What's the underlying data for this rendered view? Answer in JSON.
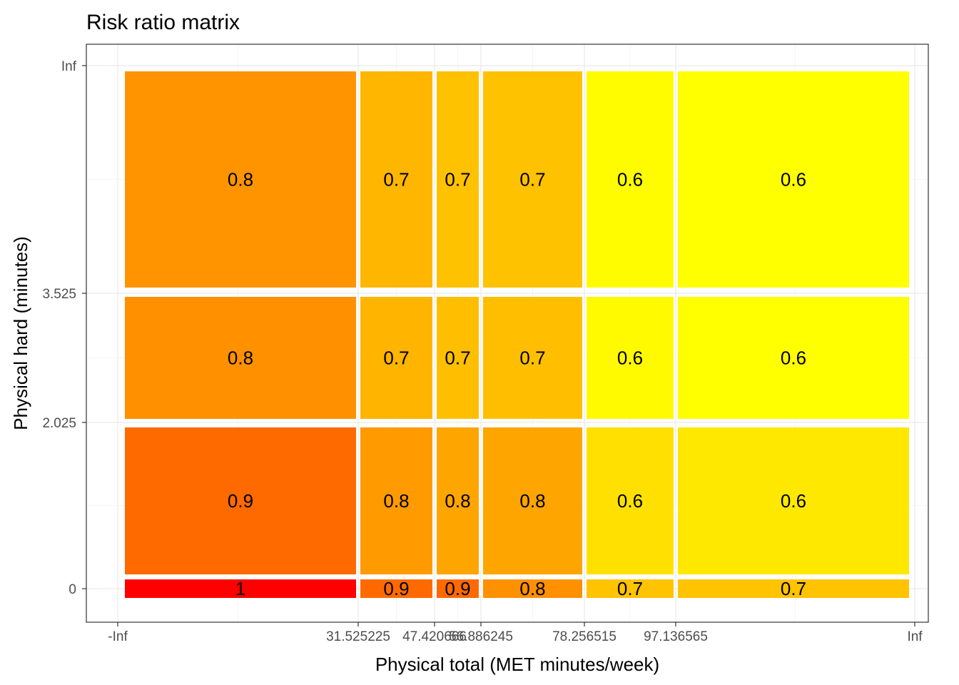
{
  "chart_data": {
    "type": "heatmap",
    "title": "Risk ratio matrix",
    "xlabel": "Physical total (MET minutes/week)",
    "ylabel": "Physical hard (minutes)",
    "x_ticks": [
      "-Inf",
      "31.525225",
      "47.420666",
      "56.886245",
      "78.256515",
      "97.136565",
      "Inf"
    ],
    "y_ticks": [
      "0",
      "2.025",
      "3.525",
      "Inf"
    ],
    "grid": true,
    "legend": "none",
    "cells": [
      {
        "x_bin": 0,
        "y_bin": 0,
        "value": 1,
        "label": "1",
        "color": "#FF0000"
      },
      {
        "x_bin": 1,
        "y_bin": 0,
        "value": 0.9,
        "label": "0.9",
        "color": "#FF6A00"
      },
      {
        "x_bin": 2,
        "y_bin": 0,
        "value": 0.9,
        "label": "0.9",
        "color": "#FF6A00"
      },
      {
        "x_bin": 3,
        "y_bin": 0,
        "value": 0.8,
        "label": "0.8",
        "color": "#FF9000"
      },
      {
        "x_bin": 4,
        "y_bin": 0,
        "value": 0.7,
        "label": "0.7",
        "color": "#FFC300"
      },
      {
        "x_bin": 5,
        "y_bin": 0,
        "value": 0.7,
        "label": "0.7",
        "color": "#FFC300"
      },
      {
        "x_bin": 0,
        "y_bin": 1,
        "value": 0.9,
        "label": "0.9",
        "color": "#FF6A00"
      },
      {
        "x_bin": 1,
        "y_bin": 1,
        "value": 0.8,
        "label": "0.8",
        "color": "#FF9A00"
      },
      {
        "x_bin": 2,
        "y_bin": 1,
        "value": 0.8,
        "label": "0.8",
        "color": "#FFA500"
      },
      {
        "x_bin": 3,
        "y_bin": 1,
        "value": 0.8,
        "label": "0.8",
        "color": "#FFA500"
      },
      {
        "x_bin": 4,
        "y_bin": 1,
        "value": 0.6,
        "label": "0.6",
        "color": "#FFE000"
      },
      {
        "x_bin": 5,
        "y_bin": 1,
        "value": 0.6,
        "label": "0.6",
        "color": "#FFE800"
      },
      {
        "x_bin": 0,
        "y_bin": 2,
        "value": 0.8,
        "label": "0.8",
        "color": "#FF9000"
      },
      {
        "x_bin": 1,
        "y_bin": 2,
        "value": 0.7,
        "label": "0.7",
        "color": "#FFB400"
      },
      {
        "x_bin": 2,
        "y_bin": 2,
        "value": 0.7,
        "label": "0.7",
        "color": "#FFBF00"
      },
      {
        "x_bin": 3,
        "y_bin": 2,
        "value": 0.7,
        "label": "0.7",
        "color": "#FFBF00"
      },
      {
        "x_bin": 4,
        "y_bin": 2,
        "value": 0.6,
        "label": "0.6",
        "color": "#FFFA00"
      },
      {
        "x_bin": 5,
        "y_bin": 2,
        "value": 0.6,
        "label": "0.6",
        "color": "#FFFF00"
      },
      {
        "x_bin": 0,
        "y_bin": 3,
        "value": 0.8,
        "label": "0.8",
        "color": "#FF9400"
      },
      {
        "x_bin": 1,
        "y_bin": 3,
        "value": 0.7,
        "label": "0.7",
        "color": "#FFB600"
      },
      {
        "x_bin": 2,
        "y_bin": 3,
        "value": 0.7,
        "label": "0.7",
        "color": "#FFC200"
      },
      {
        "x_bin": 3,
        "y_bin": 3,
        "value": 0.7,
        "label": "0.7",
        "color": "#FFC200"
      },
      {
        "x_bin": 4,
        "y_bin": 3,
        "value": 0.6,
        "label": "0.6",
        "color": "#FFFC00"
      },
      {
        "x_bin": 5,
        "y_bin": 3,
        "value": 0.6,
        "label": "0.6",
        "color": "#FFFF00"
      }
    ]
  }
}
